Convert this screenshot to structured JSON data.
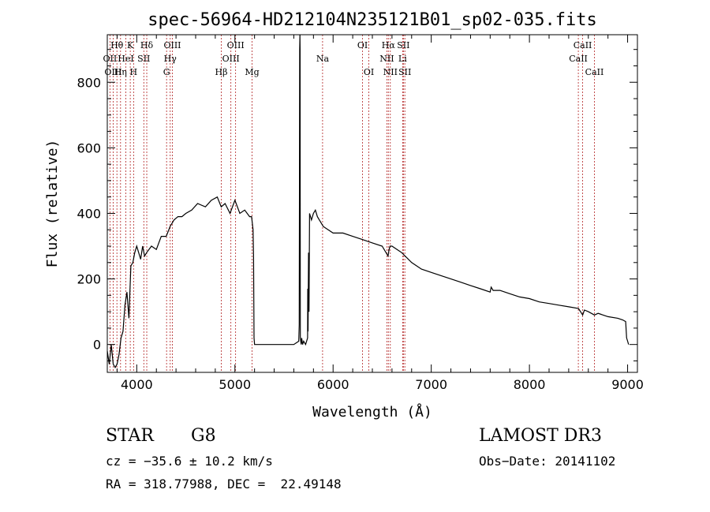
{
  "chart_data": {
    "type": "line",
    "title": "spec-56964-HD212104N235121B01_sp02-035.fits",
    "xlabel": "Wavelength (Å)",
    "ylabel": "Flux (relative)",
    "xlim": [
      3700,
      9100
    ],
    "ylim": [
      -85,
      945
    ],
    "xticks": [
      4000,
      5000,
      6000,
      7000,
      8000,
      9000
    ],
    "yticks": [
      0,
      200,
      400,
      600,
      800
    ],
    "grid": false,
    "series": [
      {
        "name": "spectrum",
        "x": [
          3700,
          3720,
          3740,
          3760,
          3780,
          3800,
          3820,
          3840,
          3860,
          3880,
          3900,
          3920,
          3940,
          3960,
          3980,
          4000,
          4020,
          4040,
          4060,
          4080,
          4100,
          4150,
          4200,
          4250,
          4300,
          4340,
          4380,
          4420,
          4460,
          4500,
          4560,
          4620,
          4700,
          4760,
          4820,
          4860,
          4900,
          4950,
          5000,
          5050,
          5100,
          5150,
          5170,
          5185,
          5190,
          5195,
          5200,
          5300,
          5400,
          5500,
          5600,
          5650,
          5655,
          5660,
          5662,
          5664,
          5666,
          5675,
          5680,
          5690,
          5700,
          5720,
          5740,
          5742,
          5745,
          5750,
          5755,
          5760,
          5780,
          5800,
          5820,
          5840,
          5860,
          5880,
          5900,
          5950,
          6000,
          6100,
          6200,
          6300,
          6400,
          6500,
          6560,
          6570,
          6580,
          6600,
          6700,
          6800,
          6900,
          7000,
          7100,
          7200,
          7300,
          7400,
          7500,
          7600,
          7610,
          7630,
          7700,
          7800,
          7900,
          8000,
          8100,
          8200,
          8300,
          8400,
          8500,
          8542,
          8560,
          8600,
          8662,
          8700,
          8800,
          8900,
          8950,
          8980,
          8990,
          9000,
          9010
        ],
        "y": [
          -20,
          -60,
          0,
          -60,
          -70,
          -60,
          -30,
          20,
          40,
          120,
          160,
          80,
          240,
          250,
          280,
          300,
          280,
          260,
          300,
          270,
          280,
          300,
          290,
          330,
          330,
          360,
          380,
          390,
          390,
          400,
          410,
          430,
          420,
          440,
          450,
          420,
          430,
          400,
          440,
          400,
          410,
          390,
          390,
          350,
          270,
          20,
          0,
          0,
          0,
          0,
          0,
          10,
          60,
          900,
          960,
          900,
          20,
          0,
          20,
          0,
          10,
          0,
          20,
          170,
          40,
          280,
          100,
          400,
          380,
          400,
          410,
          390,
          380,
          370,
          360,
          350,
          340,
          340,
          330,
          320,
          310,
          300,
          270,
          290,
          300,
          300,
          280,
          250,
          230,
          220,
          210,
          200,
          190,
          180,
          170,
          160,
          175,
          165,
          165,
          155,
          145,
          140,
          130,
          125,
          120,
          115,
          110,
          90,
          105,
          100,
          90,
          95,
          85,
          80,
          75,
          70,
          20,
          10,
          0
        ]
      }
    ],
    "line_markers": [
      {
        "label": "Hθ",
        "wavelength": 3798,
        "row": 1
      },
      {
        "label": "OII",
        "wavelength": 3727,
        "row": 2
      },
      {
        "label": "OIII",
        "wavelength": 3760,
        "row": 3
      },
      {
        "label": "Hη",
        "wavelength": 3835,
        "row": 3
      },
      {
        "label": "HeI",
        "wavelength": 3889,
        "row": 2
      },
      {
        "label": "K",
        "wavelength": 3934,
        "row": 1
      },
      {
        "label": "H",
        "wavelength": 3968,
        "row": 3
      },
      {
        "label": "SII",
        "wavelength": 4072,
        "row": 2
      },
      {
        "label": "Hδ",
        "wavelength": 4102,
        "row": 1
      },
      {
        "label": "G",
        "wavelength": 4304,
        "row": 3
      },
      {
        "label": "Hγ",
        "wavelength": 4341,
        "row": 2
      },
      {
        "label": "OIII",
        "wavelength": 4363,
        "row": 1
      },
      {
        "label": "Hβ",
        "wavelength": 4861,
        "row": 3
      },
      {
        "label": "OIII",
        "wavelength": 4959,
        "row": 2
      },
      {
        "label": "OIII",
        "wavelength": 5007,
        "row": 1
      },
      {
        "label": "Mg",
        "wavelength": 5175,
        "row": 3
      },
      {
        "label": "Na",
        "wavelength": 5893,
        "row": 2
      },
      {
        "label": "OI",
        "wavelength": 6300,
        "row": 1
      },
      {
        "label": "OI",
        "wavelength": 6364,
        "row": 3
      },
      {
        "label": "NII",
        "wavelength": 6548,
        "row": 2
      },
      {
        "label": "Hα",
        "wavelength": 6563,
        "row": 1
      },
      {
        "label": "NII",
        "wavelength": 6583,
        "row": 3
      },
      {
        "label": "SII",
        "wavelength": 6716,
        "row": 1
      },
      {
        "label": "Li",
        "wavelength": 6708,
        "row": 2
      },
      {
        "label": "SII",
        "wavelength": 6731,
        "row": 3
      },
      {
        "label": "CaII",
        "wavelength": 8498,
        "row": 2
      },
      {
        "label": "CaII",
        "wavelength": 8542,
        "row": 1
      },
      {
        "label": "CaII",
        "wavelength": 8662,
        "row": 3
      }
    ],
    "colors": {
      "spectrum": "#000000",
      "marker": "#b22222",
      "axis": "#000000"
    }
  },
  "info": {
    "class_label": "STAR",
    "subclass": "G8",
    "survey": "LAMOST DR3",
    "cz": "cz = −35.6 ± 10.2 km/s",
    "obs_date": "Obs−Date: 20141102",
    "radec": "RA = 318.77988, DEC =  22.49148"
  }
}
